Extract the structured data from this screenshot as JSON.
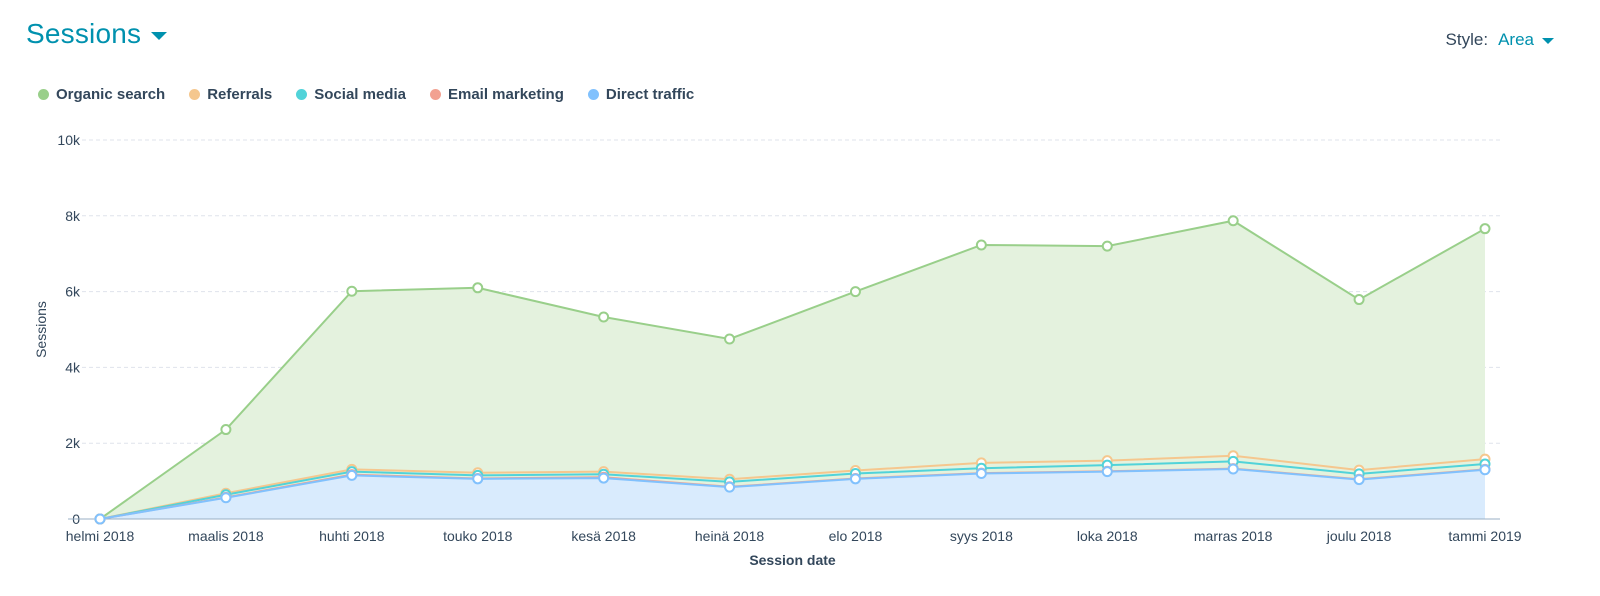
{
  "header": {
    "title": "Sessions",
    "caret_icon": "caret-down-icon"
  },
  "style_control": {
    "label": "Style:",
    "value": "Area"
  },
  "colors": {
    "organic": "#99cf8a",
    "organic_fill": "#e4f2de",
    "referrals": "#f5c78e",
    "social": "#51d3d9",
    "email": "#f2a191",
    "direct": "#81c1fd",
    "direct_fill": "#d9ebfd",
    "teal": "#0091ae"
  },
  "chart_data": {
    "type": "area",
    "stacked": true,
    "x": [
      "helmi 2018",
      "maalis 2018",
      "huhti 2018",
      "touko 2018",
      "kesä 2018",
      "heinä 2018",
      "elo 2018",
      "syys 2018",
      "loka 2018",
      "marras 2018",
      "joulu 2018",
      "tammi 2019"
    ],
    "series": [
      {
        "name": "Organic search",
        "color": "#99cf8a",
        "values": [
          0,
          1680,
          4700,
          4880,
          4080,
          3700,
          4720,
          5750,
          5660,
          6200,
          4500,
          6080
        ]
      },
      {
        "name": "Referrals",
        "color": "#f5c78e",
        "values": [
          0,
          40,
          60,
          70,
          70,
          70,
          80,
          140,
          120,
          150,
          100,
          130
        ]
      },
      {
        "name": "Social media",
        "color": "#51d3d9",
        "values": [
          0,
          70,
          80,
          80,
          80,
          130,
          130,
          130,
          160,
          190,
          140,
          140
        ]
      },
      {
        "name": "Email marketing",
        "color": "#f2a191",
        "values": [
          0,
          10,
          20,
          10,
          20,
          10,
          10,
          10,
          10,
          10,
          10,
          10
        ]
      },
      {
        "name": "Direct traffic",
        "color": "#81c1fd",
        "values": [
          0,
          560,
          1150,
          1060,
          1080,
          840,
          1060,
          1200,
          1250,
          1320,
          1040,
          1300
        ]
      }
    ],
    "xlabel": "Session date",
    "ylabel": "Sessions",
    "ylim": [
      0,
      10000
    ],
    "yticks": [
      0,
      2000,
      4000,
      6000,
      8000,
      10000
    ],
    "ytick_labels": [
      "0",
      "2k",
      "4k",
      "6k",
      "8k",
      "10k"
    ],
    "grid": true,
    "legend_position": "top-left"
  }
}
